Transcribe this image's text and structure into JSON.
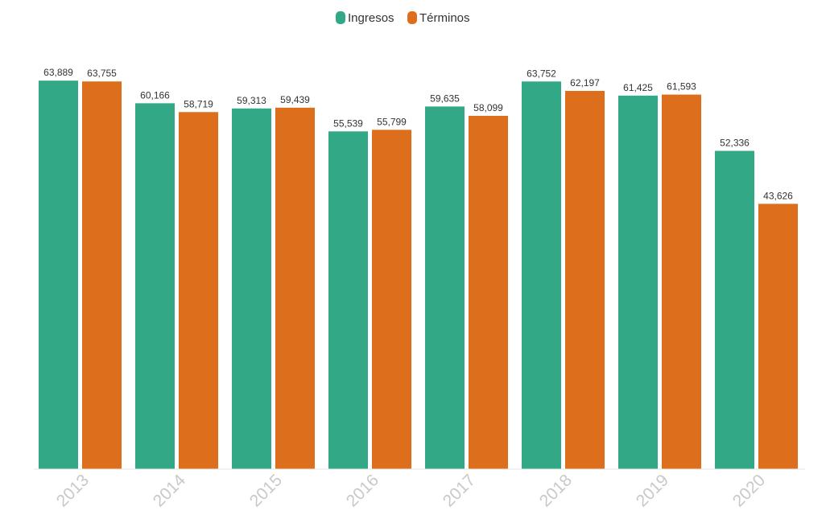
{
  "chart_data": {
    "type": "bar",
    "title": "",
    "xlabel": "",
    "ylabel": "",
    "ylim": [
      0,
      64500
    ],
    "grid": false,
    "legend_position": "top-center",
    "categories": [
      "2013",
      "2014",
      "2015",
      "2016",
      "2017",
      "2018",
      "2019",
      "2020"
    ],
    "series": [
      {
        "name": "Ingresos",
        "color": "#33a886",
        "values": [
          63889,
          60166,
          59313,
          55539,
          59635,
          63752,
          61425,
          52336
        ],
        "labels": [
          "63,889",
          "60,166",
          "59,313",
          "55,539",
          "59,635",
          "63,752",
          "61,425",
          "52,336"
        ]
      },
      {
        "name": "Términos",
        "color": "#dd6e1c",
        "values": [
          63755,
          58719,
          59439,
          55799,
          58099,
          62197,
          61593,
          43626
        ],
        "labels": [
          "63,755",
          "58,719",
          "59,439",
          "55,799",
          "58,099",
          "62,197",
          "61,593",
          "43,626"
        ]
      }
    ]
  }
}
